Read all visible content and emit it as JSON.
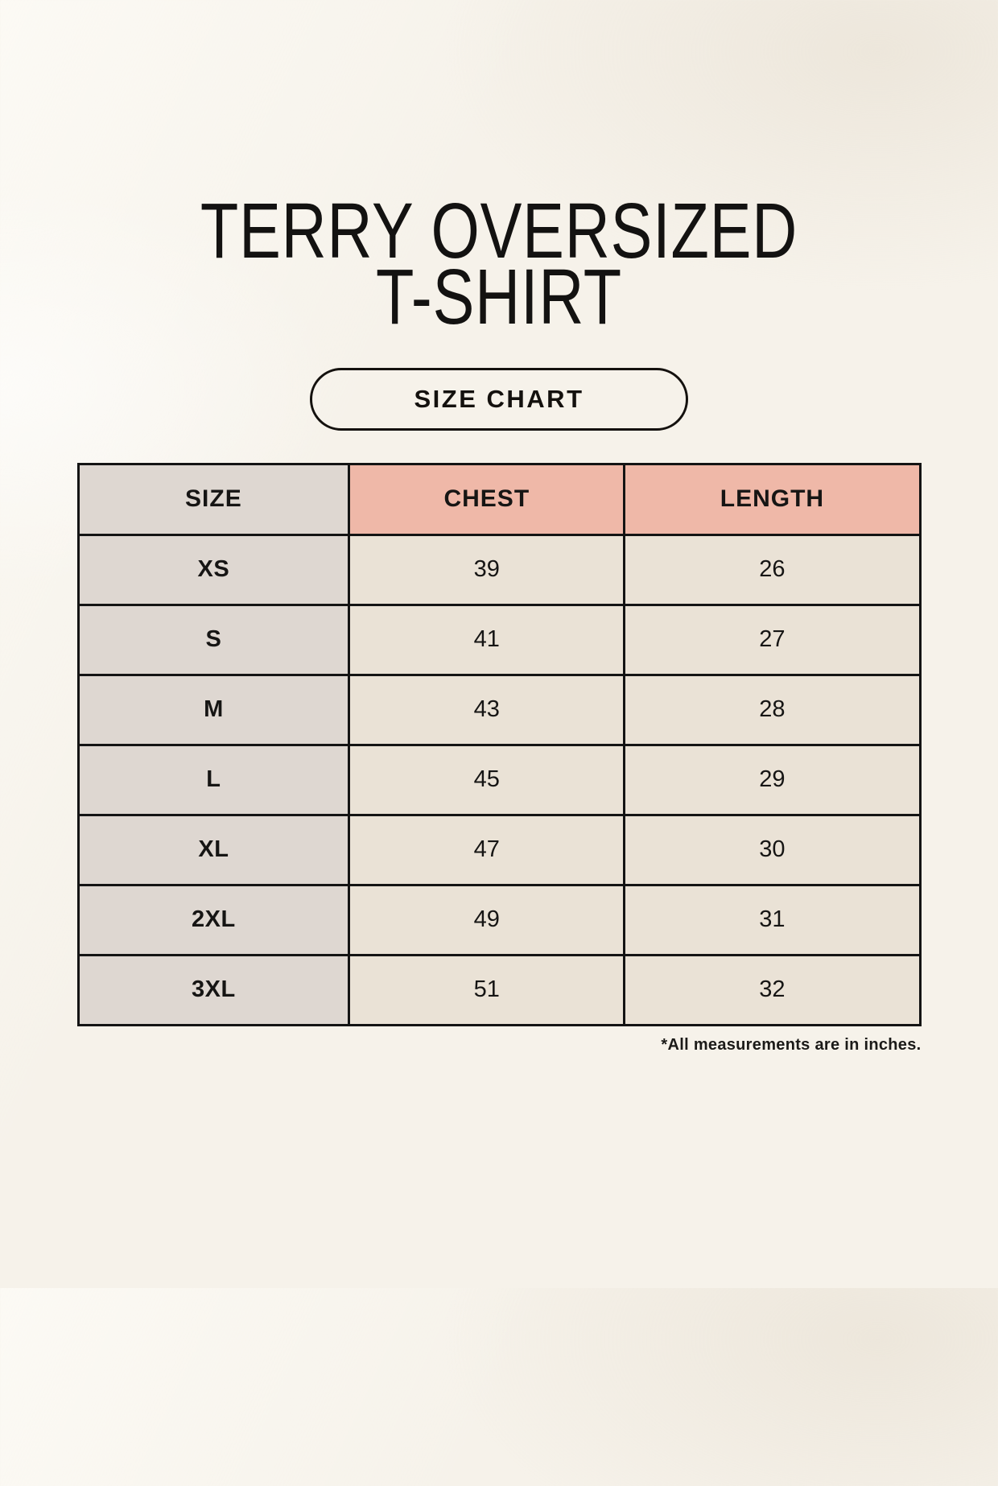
{
  "header": {
    "title_line1": "TERRY OVERSIZED",
    "title_line2": "T-SHIRT",
    "size_chart_label": "SIZE CHART"
  },
  "footnote": "*All measurements are in inches.",
  "colors": {
    "page-bg": "#F6F2EA",
    "header-pink": "#EFB8A8",
    "size-col-gray": "#DED7D1",
    "cell-cream": "#EAE2D6",
    "line": "#141414"
  },
  "chart_data": {
    "type": "table",
    "title": "TERRY OVERSIZED T-SHIRT — SIZE CHART",
    "units": "inches",
    "columns": [
      "SIZE",
      "CHEST",
      "LENGTH"
    ],
    "rows": [
      {
        "size": "XS",
        "chest": "39",
        "length": "26"
      },
      {
        "size": "S",
        "chest": "41",
        "length": "27"
      },
      {
        "size": "M",
        "chest": "43",
        "length": "28"
      },
      {
        "size": "L",
        "chest": "45",
        "length": "29"
      },
      {
        "size": "XL",
        "chest": "47",
        "length": "30"
      },
      {
        "size": "2XL",
        "chest": "49",
        "length": "31"
      },
      {
        "size": "3XL",
        "chest": "51",
        "length": "32"
      }
    ]
  }
}
